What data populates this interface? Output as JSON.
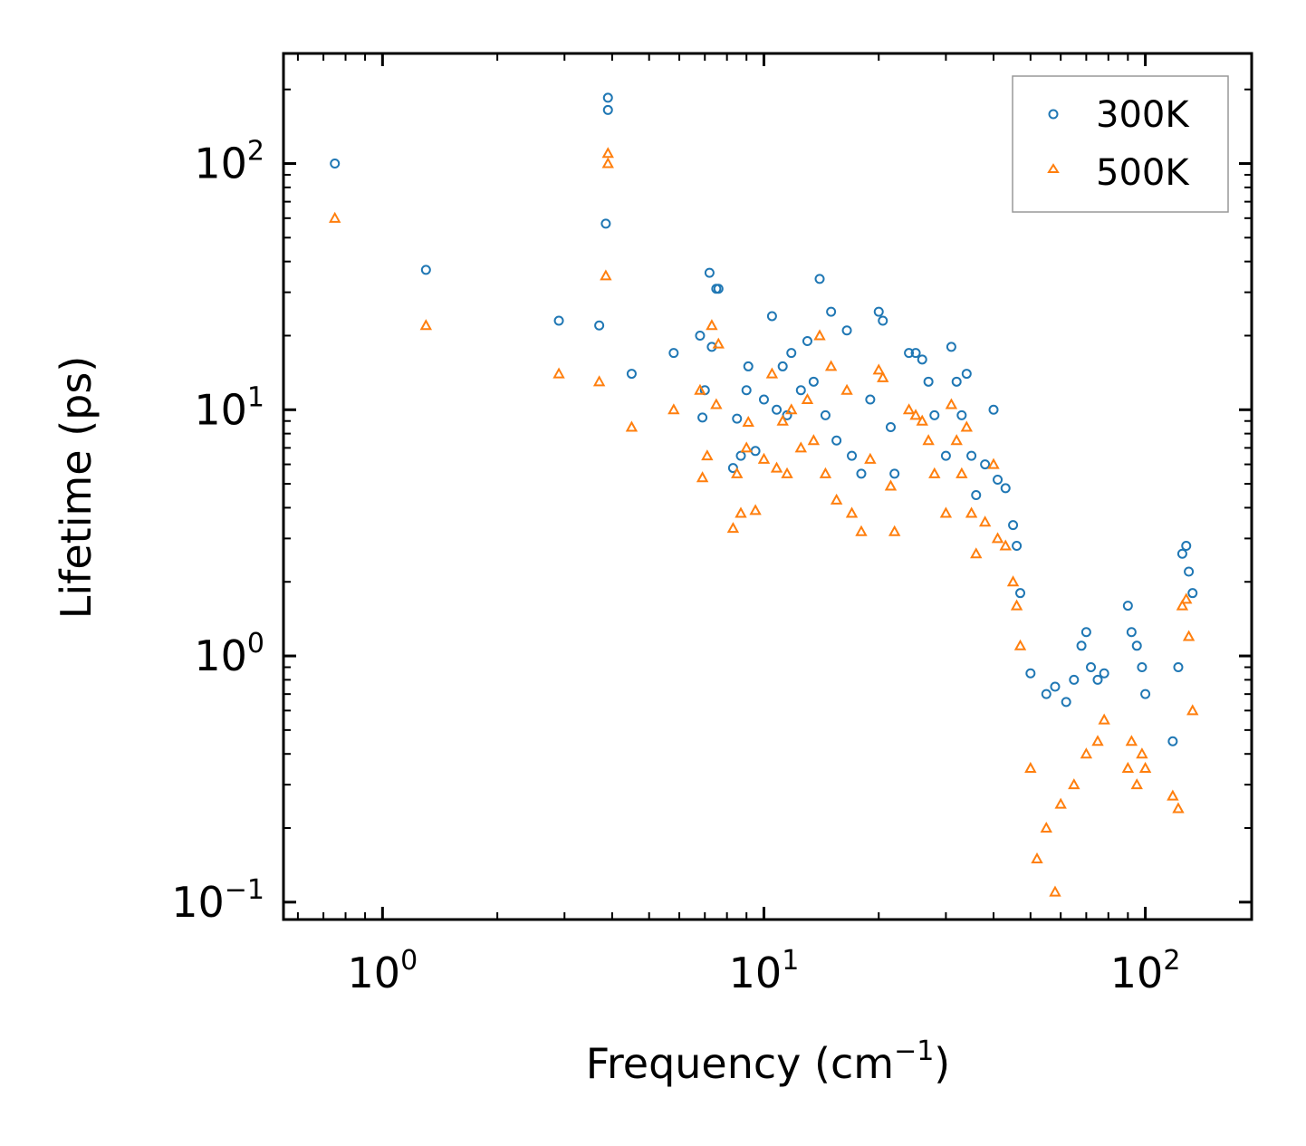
{
  "chart_data": {
    "type": "scatter",
    "xscale": "log",
    "yscale": "log",
    "xlim": [
      0.55,
      190
    ],
    "ylim": [
      0.085,
      280
    ],
    "xlabel": "Frequency (cm",
    "xlabel_sup": "−1",
    "xlabel_end": ")",
    "ylabel": "Lifetime (ps)",
    "x_ticks": [
      {
        "value": 1,
        "base": "10",
        "exp": "0"
      },
      {
        "value": 10,
        "base": "10",
        "exp": "1"
      },
      {
        "value": 100,
        "base": "10",
        "exp": "2"
      }
    ],
    "y_ticks": [
      {
        "value": 0.1,
        "base": "10",
        "exp": "−1"
      },
      {
        "value": 1,
        "base": "10",
        "exp": "0"
      },
      {
        "value": 10,
        "base": "10",
        "exp": "1"
      },
      {
        "value": 100,
        "base": "10",
        "exp": "2"
      }
    ],
    "legend_position": "top-right",
    "series": [
      {
        "name": "300K",
        "marker": "circle",
        "color": "#1f77b4",
        "points": [
          [
            0.75,
            100
          ],
          [
            1.3,
            37
          ],
          [
            2.9,
            23
          ],
          [
            3.7,
            22
          ],
          [
            3.85,
            57
          ],
          [
            3.9,
            185
          ],
          [
            3.9,
            165
          ],
          [
            4.5,
            14
          ],
          [
            5.8,
            17
          ],
          [
            6.8,
            20
          ],
          [
            6.9,
            9.3
          ],
          [
            7.0,
            12
          ],
          [
            7.2,
            36
          ],
          [
            7.3,
            18
          ],
          [
            7.5,
            31
          ],
          [
            7.6,
            31
          ],
          [
            8.3,
            5.8
          ],
          [
            8.5,
            9.2
          ],
          [
            8.7,
            6.5
          ],
          [
            9.0,
            12
          ],
          [
            9.1,
            15
          ],
          [
            9.5,
            6.8
          ],
          [
            10.0,
            11
          ],
          [
            10.5,
            24
          ],
          [
            10.8,
            10
          ],
          [
            11.2,
            15
          ],
          [
            11.5,
            9.5
          ],
          [
            11.8,
            17
          ],
          [
            12.5,
            12
          ],
          [
            13.0,
            19
          ],
          [
            13.5,
            13
          ],
          [
            14.0,
            34
          ],
          [
            14.5,
            9.5
          ],
          [
            15.0,
            25
          ],
          [
            15.5,
            7.5
          ],
          [
            16.5,
            21
          ],
          [
            17.0,
            6.5
          ],
          [
            18.0,
            5.5
          ],
          [
            19.0,
            11
          ],
          [
            20.0,
            25
          ],
          [
            20.5,
            23
          ],
          [
            21.5,
            8.5
          ],
          [
            22.0,
            5.5
          ],
          [
            24.0,
            17
          ],
          [
            25.0,
            17
          ],
          [
            26.0,
            16
          ],
          [
            27.0,
            13
          ],
          [
            28.0,
            9.5
          ],
          [
            30.0,
            6.5
          ],
          [
            31.0,
            18
          ],
          [
            32.0,
            13
          ],
          [
            33.0,
            9.5
          ],
          [
            34.0,
            14
          ],
          [
            35.0,
            6.5
          ],
          [
            36.0,
            4.5
          ],
          [
            38.0,
            6
          ],
          [
            40.0,
            10
          ],
          [
            41.0,
            5.2
          ],
          [
            43.0,
            4.8
          ],
          [
            45.0,
            3.4
          ],
          [
            46.0,
            2.8
          ],
          [
            47.0,
            1.8
          ],
          [
            50.0,
            0.85
          ],
          [
            55.0,
            0.7
          ],
          [
            58.0,
            0.75
          ],
          [
            62.0,
            0.65
          ],
          [
            65.0,
            0.8
          ],
          [
            68.0,
            1.1
          ],
          [
            70.0,
            1.25
          ],
          [
            72.0,
            0.9
          ],
          [
            75.0,
            0.8
          ],
          [
            78.0,
            0.85
          ],
          [
            90.0,
            1.6
          ],
          [
            92.0,
            1.25
          ],
          [
            95.0,
            1.1
          ],
          [
            98.0,
            0.9
          ],
          [
            100.0,
            0.7
          ],
          [
            118.0,
            0.45
          ],
          [
            122.0,
            0.9
          ],
          [
            125.0,
            2.6
          ],
          [
            128.0,
            2.8
          ],
          [
            130.0,
            2.2
          ],
          [
            133.0,
            1.8
          ]
        ]
      },
      {
        "name": "500K",
        "marker": "triangle",
        "color": "#ff7f0e",
        "points": [
          [
            0.75,
            60
          ],
          [
            1.3,
            22
          ],
          [
            2.9,
            14
          ],
          [
            3.7,
            13
          ],
          [
            3.85,
            35
          ],
          [
            3.9,
            110
          ],
          [
            3.9,
            100
          ],
          [
            4.5,
            8.5
          ],
          [
            5.8,
            10
          ],
          [
            6.8,
            12
          ],
          [
            6.9,
            5.3
          ],
          [
            7.1,
            6.5
          ],
          [
            7.3,
            22
          ],
          [
            7.5,
            10.5
          ],
          [
            7.6,
            18.5
          ],
          [
            8.3,
            3.3
          ],
          [
            8.5,
            5.5
          ],
          [
            8.7,
            3.8
          ],
          [
            9.0,
            7
          ],
          [
            9.1,
            8.9
          ],
          [
            9.5,
            3.9
          ],
          [
            10.0,
            6.3
          ],
          [
            10.5,
            14
          ],
          [
            10.8,
            5.8
          ],
          [
            11.2,
            9
          ],
          [
            11.5,
            5.5
          ],
          [
            11.8,
            10
          ],
          [
            12.5,
            7
          ],
          [
            13.0,
            11
          ],
          [
            13.5,
            7.5
          ],
          [
            14.0,
            20
          ],
          [
            14.5,
            5.5
          ],
          [
            15.0,
            15
          ],
          [
            15.5,
            4.3
          ],
          [
            16.5,
            12
          ],
          [
            17.0,
            3.8
          ],
          [
            18.0,
            3.2
          ],
          [
            19.0,
            6.3
          ],
          [
            20.0,
            14.5
          ],
          [
            20.5,
            13.5
          ],
          [
            21.5,
            4.9
          ],
          [
            22.0,
            3.2
          ],
          [
            24.0,
            10
          ],
          [
            25.0,
            9.5
          ],
          [
            26.0,
            9
          ],
          [
            27.0,
            7.5
          ],
          [
            28.0,
            5.5
          ],
          [
            30.0,
            3.8
          ],
          [
            31.0,
            10.5
          ],
          [
            32.0,
            7.5
          ],
          [
            33.0,
            5.5
          ],
          [
            34.0,
            8.5
          ],
          [
            35.0,
            3.8
          ],
          [
            36.0,
            2.6
          ],
          [
            38.0,
            3.5
          ],
          [
            40.0,
            6
          ],
          [
            41.0,
            3
          ],
          [
            43.0,
            2.8
          ],
          [
            45.0,
            2
          ],
          [
            46.0,
            1.6
          ],
          [
            47.0,
            1.1
          ],
          [
            50.0,
            0.35
          ],
          [
            52.0,
            0.15
          ],
          [
            55.0,
            0.2
          ],
          [
            58.0,
            0.11
          ],
          [
            60.0,
            0.25
          ],
          [
            65.0,
            0.3
          ],
          [
            70.0,
            0.4
          ],
          [
            75.0,
            0.45
          ],
          [
            78.0,
            0.55
          ],
          [
            90.0,
            0.35
          ],
          [
            92.0,
            0.45
          ],
          [
            95.0,
            0.3
          ],
          [
            98.0,
            0.4
          ],
          [
            100.0,
            0.35
          ],
          [
            118.0,
            0.27
          ],
          [
            122.0,
            0.24
          ],
          [
            125.0,
            1.6
          ],
          [
            128.0,
            1.7
          ],
          [
            130.0,
            1.2
          ],
          [
            133.0,
            0.6
          ]
        ]
      }
    ]
  }
}
